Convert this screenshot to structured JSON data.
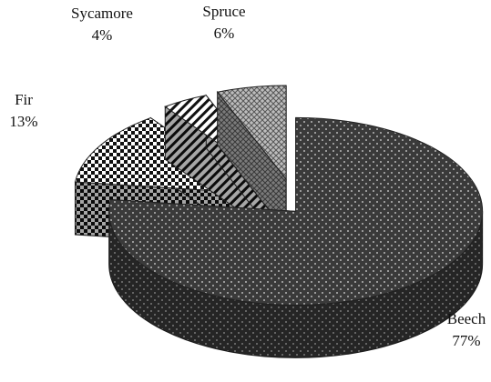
{
  "chart_data": {
    "type": "pie3d",
    "categories": [
      "Beech",
      "Fir",
      "Sycamore",
      "Spruce"
    ],
    "values": [
      77,
      13,
      4,
      6
    ],
    "value_labels": [
      "77%",
      "13%",
      "4%",
      "6%"
    ],
    "colors": [
      "#3a3a3a",
      "#ffffff",
      "#ffffff",
      "#bdbdbd"
    ]
  }
}
